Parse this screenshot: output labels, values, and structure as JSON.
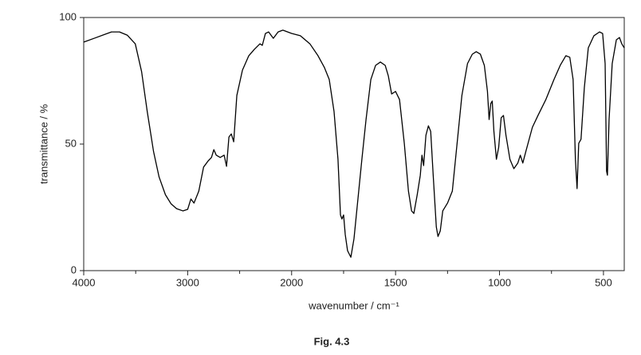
{
  "chart_data": {
    "type": "line",
    "caption": "Fig. 4.3",
    "xlabel": "wavenumber / cm⁻¹",
    "ylabel": "transmittance / %",
    "color": "#000000",
    "xlim": [
      4000,
      400
    ],
    "xscale_break": 2000,
    "xticks": [
      4000,
      3000,
      2000,
      1500,
      1000,
      500
    ],
    "xminorticks": [
      3500,
      2500,
      1750,
      1250,
      750
    ],
    "ylim": [
      0,
      100
    ],
    "yticks": [
      0,
      50,
      100
    ],
    "x": [
      4000,
      3885,
      3733,
      3656,
      3580,
      3504,
      3443,
      3389,
      3328,
      3275,
      3214,
      3160,
      3107,
      3046,
      3000,
      2969,
      2939,
      2893,
      2847,
      2802,
      2771,
      2748,
      2725,
      2687,
      2649,
      2626,
      2603,
      2580,
      2557,
      2527,
      2473,
      2412,
      2359,
      2305,
      2282,
      2252,
      2221,
      2176,
      2130,
      2084,
      2000,
      1958,
      1912,
      1873,
      1842,
      1819,
      1796,
      1777,
      1765,
      1758,
      1750,
      1742,
      1731,
      1715,
      1700,
      1681,
      1662,
      1642,
      1619,
      1596,
      1573,
      1550,
      1535,
      1519,
      1500,
      1481,
      1458,
      1438,
      1423,
      1412,
      1396,
      1381,
      1373,
      1365,
      1354,
      1342,
      1331,
      1319,
      1304,
      1296,
      1285,
      1273,
      1250,
      1227,
      1204,
      1181,
      1154,
      1131,
      1112,
      1092,
      1073,
      1058,
      1050,
      1042,
      1035,
      1027,
      1015,
      1004,
      992,
      981,
      969,
      950,
      931,
      912,
      900,
      888,
      873,
      842,
      815,
      777,
      738,
      708,
      681,
      662,
      646,
      635,
      627,
      619,
      608,
      592,
      573,
      546,
      519,
      504,
      492,
      485,
      481,
      473,
      458,
      438,
      423,
      412,
      400
    ],
    "values": [
      90.3,
      92,
      94.3,
      94.3,
      93,
      89.6,
      78.6,
      62.9,
      47,
      37,
      30,
      26.4,
      24.5,
      23.6,
      24.2,
      28.3,
      26.7,
      31.4,
      40.9,
      43.4,
      44.7,
      47.8,
      45.6,
      44.7,
      45.6,
      41.2,
      52.8,
      54,
      50.9,
      69.2,
      79.2,
      84.9,
      87.4,
      89.6,
      89,
      93.7,
      94.3,
      91.8,
      94.3,
      95,
      93.7,
      92.8,
      89.6,
      84.9,
      80.2,
      75.5,
      62.9,
      44,
      22,
      20.4,
      22,
      14.2,
      7.9,
      5.3,
      12.6,
      28.3,
      44,
      59.7,
      75.5,
      81.1,
      82.4,
      81.1,
      77,
      69.8,
      70.8,
      67.6,
      50.3,
      31.4,
      23.6,
      22.6,
      29.9,
      37.7,
      45.6,
      41.5,
      53.5,
      57.2,
      55,
      37.7,
      17.3,
      13.5,
      15.7,
      23.6,
      26.7,
      31.4,
      50.3,
      69.2,
      81.8,
      85.5,
      86.5,
      85.5,
      81.1,
      70.8,
      59.7,
      66,
      67,
      55,
      44,
      48.7,
      60.4,
      61.3,
      53.5,
      44,
      40.3,
      42.5,
      45.6,
      42.5,
      47.2,
      56.6,
      61.3,
      67.6,
      75.5,
      81.1,
      84.9,
      84.3,
      75.5,
      44,
      32.4,
      50.3,
      51.9,
      72.3,
      88,
      92.8,
      94.3,
      93.7,
      81.8,
      39.3,
      37.7,
      59.7,
      81.8,
      91.2,
      92.1,
      89.6,
      88
    ]
  }
}
